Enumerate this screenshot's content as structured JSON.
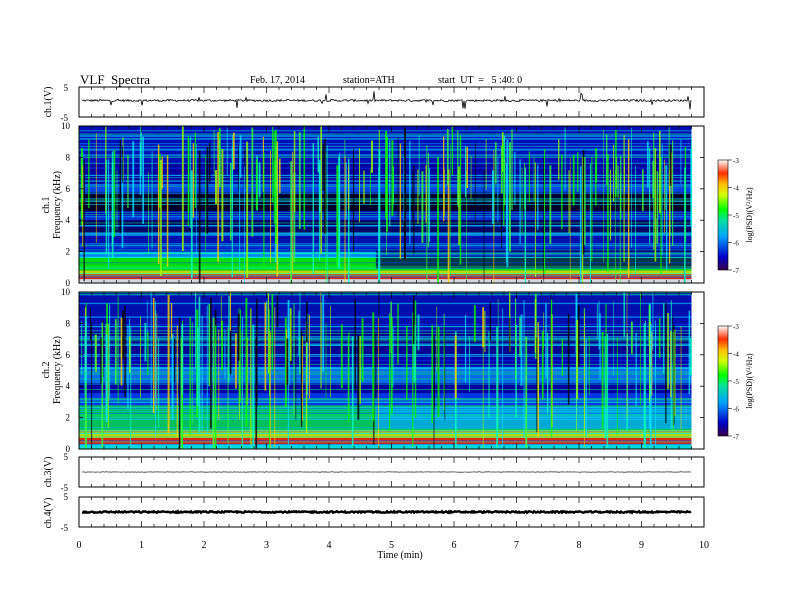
{
  "header": {
    "title": "VLF  Spectra",
    "date": "Feb. 17, 2014",
    "station": "station=ATH",
    "start": "start  UT  =   5 :40: 0"
  },
  "colors": {
    "spectrogram_background": "#00004a",
    "colormap": [
      "#3a0048",
      "#0000c8",
      "#00a0ff",
      "#00e0a0",
      "#00ff00",
      "#d0ff00",
      "#ffc000",
      "#ff3000",
      "#ffffff"
    ]
  },
  "chart_data": [
    {
      "type": "line",
      "name": "ch.1",
      "ylabel": "ch.1(V)",
      "y_ticks": [
        "5",
        "-5"
      ],
      "ylim": [
        -5,
        5
      ],
      "x_range": [
        0,
        10
      ],
      "baseline_value": 0.5,
      "noise_amplitude": 0.35
    },
    {
      "type": "heatmap",
      "name": "ch.1",
      "ylabel_line1": "ch.1",
      "ylabel_line2": "Frequency  (kHz)",
      "y_ticks": [
        "0",
        "2",
        "4",
        "6",
        "8",
        "10"
      ],
      "ylim": [
        0,
        10
      ],
      "colorbar_label": "log(PSD)(V²/Hz)",
      "colorbar_ticks": [
        "-3",
        "-4",
        "-5",
        "-6",
        "-7"
      ],
      "colorbar_range": [
        -7,
        -3
      ],
      "data_end_min": 9.8,
      "level_change_min": 4.75
    },
    {
      "type": "heatmap",
      "name": "ch.2",
      "ylabel_line1": "ch.2",
      "ylabel_line2": "Frequency  (kHz)",
      "y_ticks": [
        "0",
        "2",
        "4",
        "6",
        "8",
        "10"
      ],
      "ylim": [
        0,
        10
      ],
      "colorbar_label": "log(PSD)(V²/Hz)",
      "colorbar_ticks": [
        "-3",
        "-4",
        "-5",
        "-6",
        "-7"
      ],
      "colorbar_range": [
        -7,
        -3
      ],
      "data_end_min": 9.8,
      "level_change_min": 4.75
    },
    {
      "type": "line",
      "name": "ch.3",
      "ylabel": "ch.3(V)",
      "y_ticks": [
        "5",
        "-5"
      ],
      "ylim": [
        -5,
        5
      ],
      "baseline_value": 0.0,
      "noise_amplitude": 0.08
    },
    {
      "type": "line",
      "name": "ch.4",
      "ylabel": "ch.4(V)",
      "y_ticks": [
        "5",
        "-5"
      ],
      "ylim": [
        -5,
        5
      ],
      "baseline_value": 0.0,
      "noise_amplitude": 0.25
    }
  ],
  "x_axis": {
    "label": "Time  (min)",
    "ticks": [
      "0",
      "1",
      "2",
      "3",
      "4",
      "5",
      "6",
      "7",
      "8",
      "9",
      "10"
    ],
    "range": [
      0,
      10
    ]
  }
}
